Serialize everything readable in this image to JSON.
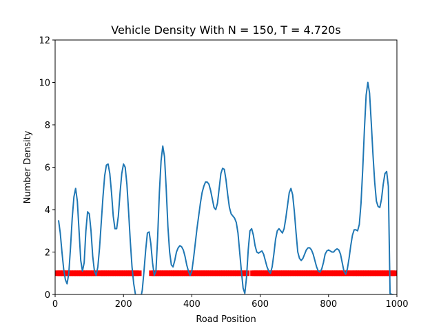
{
  "chart_data": {
    "type": "line",
    "title": "Vehicle Density With N = 150, T = 4.720s",
    "xlabel": "Road Position",
    "ylabel": "Number Density",
    "xlim": [
      0,
      1000
    ],
    "ylim": [
      0,
      12
    ],
    "x_ticks": [
      "0",
      "200",
      "400",
      "600",
      "800",
      "1000"
    ],
    "y_ticks": [
      "0",
      "2",
      "4",
      "6",
      "8",
      "10",
      "12"
    ],
    "grid": false,
    "legend": "none",
    "series": [
      {
        "color": "#1f77b4",
        "x": [
          10,
          15,
          20,
          25,
          30,
          35,
          40,
          45,
          50,
          55,
          60,
          65,
          70,
          75,
          80,
          85,
          90,
          95,
          100,
          105,
          110,
          115,
          120,
          125,
          130,
          135,
          140,
          145,
          150,
          155,
          160,
          165,
          170,
          175,
          180,
          185,
          190,
          195,
          200,
          205,
          210,
          215,
          220,
          225,
          230,
          235,
          240,
          245,
          250,
          255,
          260,
          265,
          270,
          275,
          280,
          285,
          290,
          295,
          300,
          305,
          310,
          315,
          320,
          325,
          330,
          335,
          340,
          345,
          350,
          355,
          360,
          365,
          370,
          375,
          380,
          385,
          390,
          395,
          400,
          405,
          410,
          415,
          420,
          425,
          430,
          435,
          440,
          445,
          450,
          455,
          460,
          465,
          470,
          475,
          480,
          485,
          490,
          495,
          500,
          505,
          510,
          515,
          520,
          525,
          530,
          535,
          540,
          545,
          550,
          555,
          560,
          565,
          570,
          575,
          580,
          585,
          590,
          595,
          600,
          605,
          610,
          615,
          620,
          625,
          630,
          635,
          640,
          645,
          650,
          655,
          660,
          665,
          670,
          675,
          680,
          685,
          690,
          695,
          700,
          705,
          710,
          715,
          720,
          725,
          730,
          735,
          740,
          745,
          750,
          755,
          760,
          765,
          770,
          775,
          780,
          785,
          790,
          795,
          800,
          805,
          810,
          815,
          820,
          825,
          830,
          835,
          840,
          845,
          850,
          855,
          860,
          865,
          870,
          875,
          880,
          885,
          890,
          895,
          900,
          905,
          910,
          915,
          920,
          925,
          930,
          935,
          940,
          945,
          950,
          955,
          960,
          965,
          970,
          975,
          980,
          985,
          990
        ],
        "values": [
          3.5,
          2.9,
          2.0,
          1.2,
          0.7,
          0.5,
          1.0,
          2.2,
          3.6,
          4.6,
          5.0,
          4.4,
          3.0,
          1.6,
          1.1,
          1.5,
          3.0,
          3.9,
          3.8,
          3.0,
          1.8,
          1.1,
          0.9,
          1.3,
          2.2,
          3.4,
          4.6,
          5.6,
          6.1,
          6.15,
          5.7,
          4.8,
          3.7,
          3.1,
          3.1,
          3.7,
          4.8,
          5.7,
          6.15,
          6.0,
          5.2,
          3.9,
          2.5,
          1.3,
          0.5,
          0.0,
          -0.2,
          -0.3,
          -0.2,
          0.2,
          1.1,
          2.1,
          2.9,
          2.95,
          2.4,
          1.5,
          0.9,
          1.1,
          2.7,
          4.8,
          6.3,
          7.0,
          6.5,
          5.0,
          3.2,
          2.0,
          1.4,
          1.3,
          1.6,
          2.0,
          2.2,
          2.3,
          2.25,
          2.1,
          1.8,
          1.4,
          1.1,
          0.9,
          1.1,
          1.7,
          2.4,
          3.1,
          3.7,
          4.3,
          4.8,
          5.1,
          5.3,
          5.3,
          5.2,
          4.9,
          4.5,
          4.1,
          4.0,
          4.3,
          5.0,
          5.7,
          5.95,
          5.9,
          5.4,
          4.7,
          4.1,
          3.8,
          3.7,
          3.6,
          3.4,
          2.9,
          2.0,
          1.1,
          0.3,
          0.05,
          0.8,
          2.1,
          3.0,
          3.1,
          2.8,
          2.3,
          2.0,
          1.95,
          2.0,
          2.05,
          1.9,
          1.6,
          1.3,
          1.1,
          1.0,
          1.3,
          1.9,
          2.6,
          3.0,
          3.1,
          3.0,
          2.9,
          3.1,
          3.6,
          4.2,
          4.8,
          5.0,
          4.7,
          3.9,
          2.9,
          2.0,
          1.7,
          1.6,
          1.7,
          1.9,
          2.1,
          2.2,
          2.2,
          2.1,
          1.9,
          1.6,
          1.3,
          1.1,
          1.05,
          1.2,
          1.5,
          1.9,
          2.05,
          2.1,
          2.05,
          2.0,
          2.0,
          2.1,
          2.15,
          2.1,
          1.9,
          1.5,
          1.1,
          0.95,
          1.2,
          1.7,
          2.3,
          2.8,
          3.05,
          3.05,
          3.0,
          3.3,
          4.3,
          5.9,
          7.8,
          9.4,
          10.0,
          9.5,
          8.1,
          6.6,
          5.3,
          4.4,
          4.15,
          4.1,
          4.5,
          5.2,
          5.7,
          5.8,
          5.1,
          0.05,
          0.0,
          0.0
        ]
      }
    ],
    "scatter": {
      "color": "#ff0000",
      "y": 1.0,
      "x": [
        5,
        12,
        18,
        24,
        31,
        37,
        44,
        52,
        58,
        65,
        72,
        78,
        86,
        92,
        99,
        106,
        113,
        120,
        131,
        137,
        143,
        150,
        156,
        163,
        170,
        176,
        183,
        190,
        196,
        203,
        210,
        216,
        222,
        229,
        237,
        245,
        283,
        290,
        296,
        302,
        308,
        315,
        321,
        328,
        334,
        341,
        347,
        353,
        360,
        366,
        373,
        379,
        386,
        392,
        398,
        404,
        410,
        417,
        423,
        430,
        436,
        442,
        449,
        455,
        462,
        468,
        475,
        481,
        488,
        494,
        501,
        508,
        514,
        521,
        528,
        534,
        541,
        548,
        555,
        561,
        579,
        585,
        591,
        597,
        604,
        610,
        617,
        623,
        629,
        636,
        643,
        649,
        656,
        663,
        669,
        676,
        682,
        689,
        696,
        703,
        710,
        716,
        723,
        730,
        737,
        743,
        750,
        757,
        764,
        771,
        778,
        784,
        791,
        797,
        805,
        812,
        818,
        825,
        831,
        838,
        844,
        851,
        858,
        866,
        875,
        881,
        888,
        895,
        902,
        909,
        916,
        923,
        930,
        937,
        944,
        951,
        958,
        965,
        972,
        979,
        986,
        993
      ]
    }
  }
}
